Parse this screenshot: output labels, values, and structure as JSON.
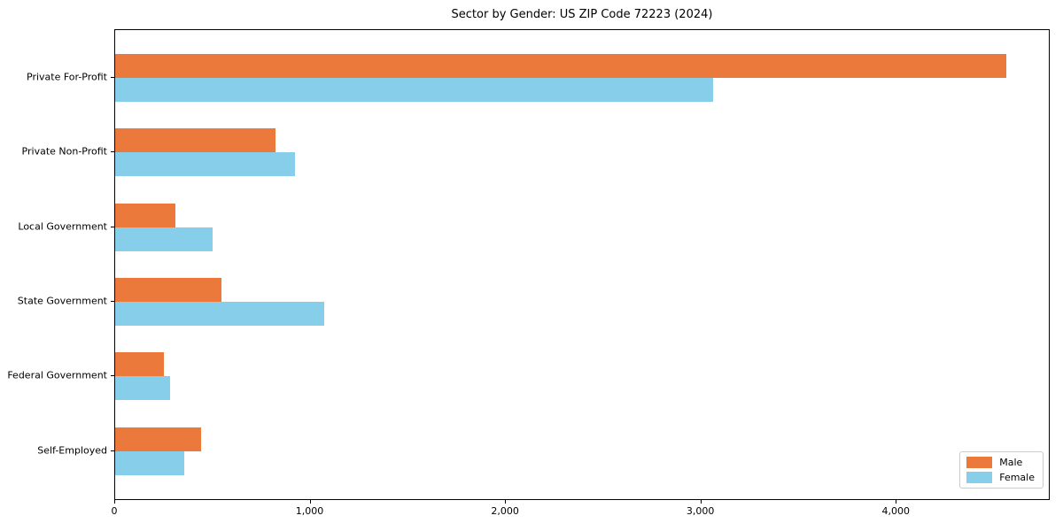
{
  "title": "Sector by Gender: US ZIP Code 72223 (2024)",
  "chart_data": {
    "type": "bar",
    "orientation": "horizontal",
    "title": "Sector by Gender: US ZIP Code 72223 (2024)",
    "xlabel": "",
    "ylabel": "",
    "categories": [
      "Private For-Profit",
      "Private Non-Profit",
      "Local Government",
      "State Government",
      "Federal Government",
      "Self-Employed"
    ],
    "series": [
      {
        "name": "Male",
        "color": "#EC793C",
        "values": [
          4560,
          820,
          310,
          545,
          250,
          440
        ]
      },
      {
        "name": "Female",
        "color": "#87CEEB",
        "values": [
          3060,
          920,
          500,
          1070,
          280,
          355
        ]
      }
    ],
    "xlim": [
      0,
      4788
    ],
    "xticks": [
      0,
      1000,
      2000,
      3000,
      4000
    ],
    "xtick_labels": [
      "0",
      "1,000",
      "2,000",
      "3,000",
      "4,000"
    ],
    "grid": false,
    "legend_position": "lower right",
    "axis_color": "#000000",
    "background_color": "#ffffff"
  }
}
